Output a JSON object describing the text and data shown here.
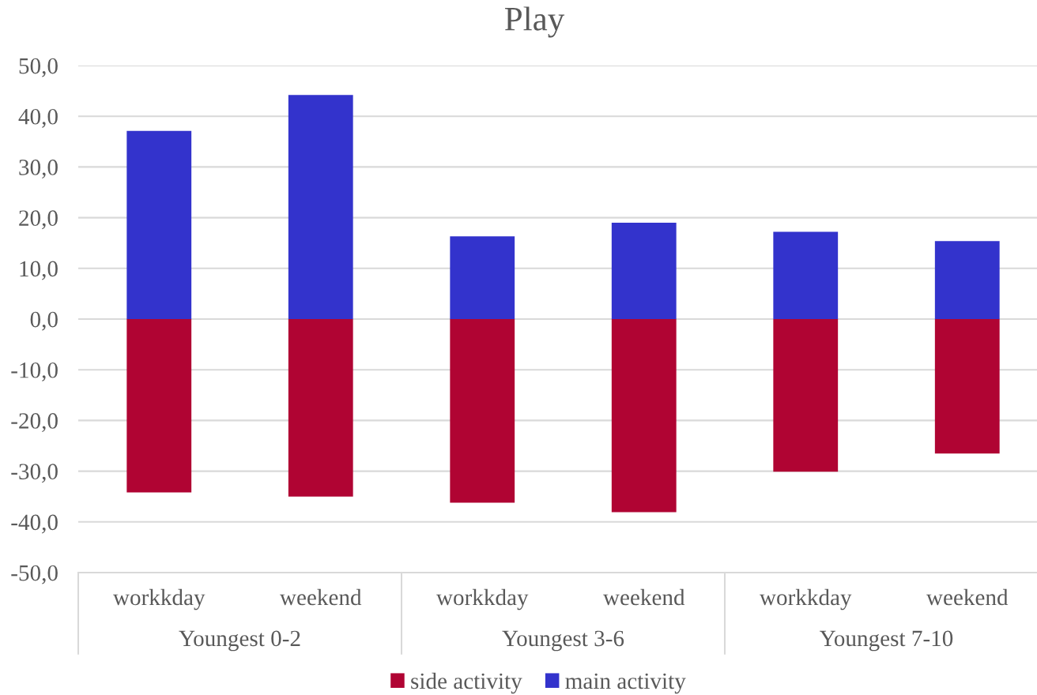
{
  "chart_data": {
    "type": "bar",
    "title": "Play",
    "categories": [
      "workkday",
      "weekend",
      "workkday",
      "weekend",
      "workkday",
      "weekend"
    ],
    "stacked": true,
    "series": [
      {
        "name": "side activity",
        "color": "#b00433",
        "values": [
          -34.2,
          -35.0,
          -36.2,
          -38.1,
          -30.1,
          -26.5
        ]
      },
      {
        "name": "main activity",
        "color": "#3333cc",
        "values": [
          37.1,
          44.2,
          16.3,
          19.0,
          17.2,
          15.4
        ]
      }
    ],
    "ylim": [
      -50,
      50
    ],
    "yticks": [
      {
        "value": -50,
        "label": "-50,0"
      },
      {
        "value": -40,
        "label": "-40,0"
      },
      {
        "value": -30,
        "label": "-30,0"
      },
      {
        "value": -20,
        "label": "-20,0"
      },
      {
        "value": -10,
        "label": "-10,0"
      },
      {
        "value": 0,
        "label": "0,0"
      },
      {
        "value": 10,
        "label": "10,0"
      },
      {
        "value": 20,
        "label": "20,0"
      },
      {
        "value": 30,
        "label": "30,0"
      },
      {
        "value": 40,
        "label": "40,0"
      },
      {
        "value": 50,
        "label": "50,0"
      }
    ],
    "grid": "y",
    "legend": "bottom",
    "annotations": [
      "Youngest 0-2",
      "Youngest 3-6",
      "Youngest 7-10"
    ]
  }
}
